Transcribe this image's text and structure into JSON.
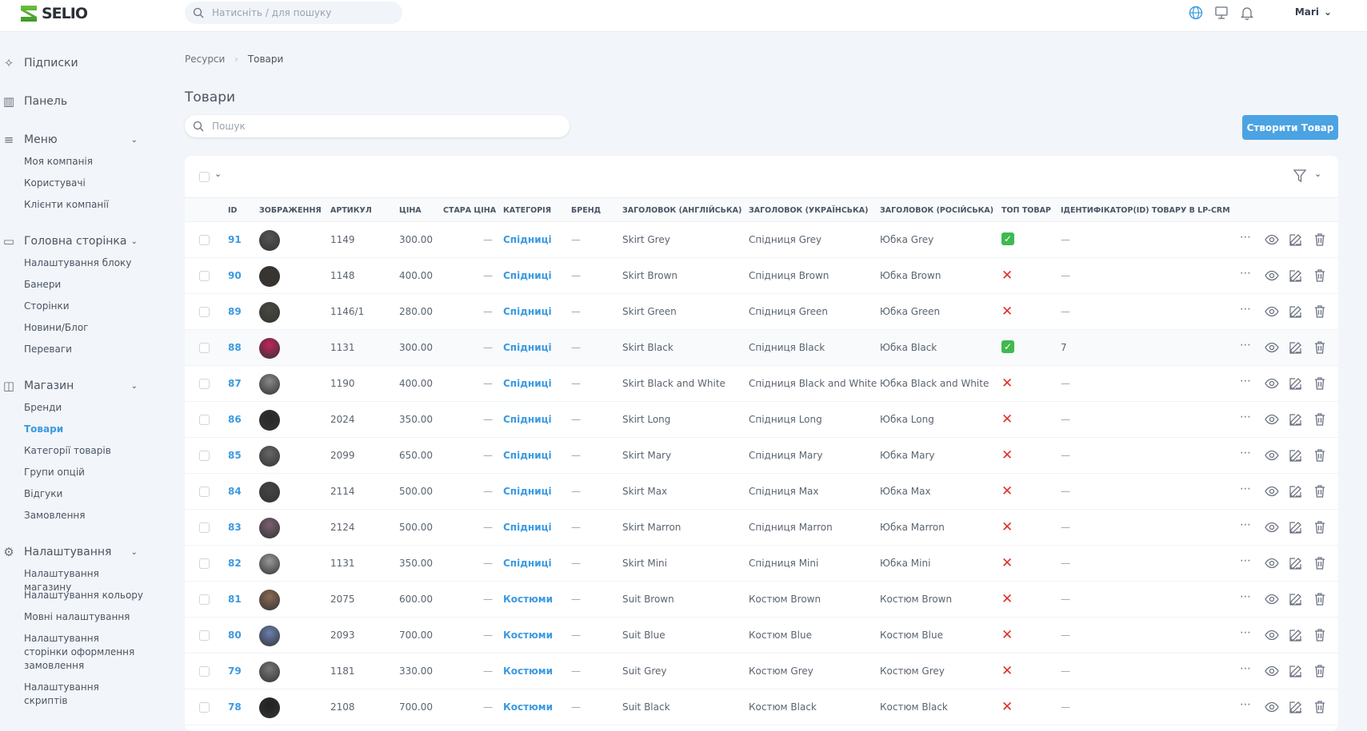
{
  "app": {
    "logo": "SELIO",
    "search_placeholder": "Натисніть / для пошуку",
    "user": "Mari",
    "icons": [
      "globe-icon",
      "monitor-icon",
      "bell-icon"
    ],
    "accent": "#4ba3e3"
  },
  "sidebar": {
    "sections": [
      {
        "label": "Підписки",
        "icon": "sparkles-icon",
        "items": []
      },
      {
        "label": "Панель",
        "icon": "bar-chart-icon",
        "items": []
      },
      {
        "label": "Меню",
        "icon": "menu-icon",
        "items": [
          "Моя компанія",
          "Користувачі",
          "Клієнти компанії"
        ]
      },
      {
        "label": "Головна сторінка",
        "icon": "layers-icon",
        "items": [
          "Налаштування блоку",
          "Банери",
          "Сторінки",
          "Новини/Блог",
          "Переваги"
        ]
      },
      {
        "label": "Магазин",
        "icon": "shopping-bag-icon",
        "items": [
          "Бренди",
          "Товари",
          "Категорії товарів",
          "Групи опцій",
          "Відгуки",
          "Замовлення"
        ]
      },
      {
        "label": "Налаштування",
        "icon": "gear-icon",
        "items": [
          "Налаштування магазину",
          "Налаштування кольору",
          "Мовні налаштування",
          "Налаштування сторінки оформлення замовлення",
          "Налаштування скриптів"
        ]
      }
    ],
    "active": "Товари"
  },
  "breadcrumb": [
    "Ресурси",
    "Товари"
  ],
  "page": {
    "title": "Товари",
    "search_placeholder": "Пошук",
    "create_label": "Створити Товар"
  },
  "table": {
    "columns": [
      "ID",
      "ЗОБРАЖЕННЯ",
      "АРТИКУЛ",
      "ЦІНА",
      "СТАРА ЦІНА",
      "КАТЕГОРІЯ",
      "БРЕНД",
      "ЗАГОЛОВОК (АНГЛІЙСЬКА)",
      "ЗАГОЛОВОК (УКРАЇНСЬКА)",
      "ЗАГОЛОВОК (РОСІЙСЬКА)",
      "ТОП ТОВАР",
      "ІДЕНТИФІКАТОР(ID) ТОВАРУ В LP-CRM"
    ],
    "rows": [
      {
        "id": "91",
        "sku": "1149",
        "price": "300.00",
        "old": "—",
        "cat": "Спідниці",
        "brand": "—",
        "en": "Skirt Grey",
        "uk": "Спідниця Grey",
        "ru": "Юбка Grey",
        "top": true,
        "lp": "—"
      },
      {
        "id": "90",
        "sku": "1148",
        "price": "400.00",
        "old": "—",
        "cat": "Спідниці",
        "brand": "—",
        "en": "Skirt Brown",
        "uk": "Спідниця Brown",
        "ru": "Юбка Brown",
        "top": false,
        "lp": "—"
      },
      {
        "id": "89",
        "sku": "1146/1",
        "price": "280.00",
        "old": "—",
        "cat": "Спідниці",
        "brand": "—",
        "en": "Skirt Green",
        "uk": "Спідниця Green",
        "ru": "Юбка Green",
        "top": false,
        "lp": "—"
      },
      {
        "id": "88",
        "sku": "1131",
        "price": "300.00",
        "old": "—",
        "cat": "Спідниці",
        "brand": "—",
        "en": "Skirt Black",
        "uk": "Спідниця Black",
        "ru": "Юбка Black",
        "top": true,
        "lp": "7"
      },
      {
        "id": "87",
        "sku": "1190",
        "price": "400.00",
        "old": "—",
        "cat": "Спідниці",
        "brand": "—",
        "en": "Skirt Black and White",
        "uk": "Спідниця Black and White",
        "ru": "Юбка Black and White",
        "top": false,
        "lp": "—"
      },
      {
        "id": "86",
        "sku": "2024",
        "price": "350.00",
        "old": "—",
        "cat": "Спідниці",
        "brand": "—",
        "en": "Skirt Long",
        "uk": "Спідниця Long",
        "ru": "Юбка Long",
        "top": false,
        "lp": "—"
      },
      {
        "id": "85",
        "sku": "2099",
        "price": "650.00",
        "old": "—",
        "cat": "Спідниці",
        "brand": "—",
        "en": "Skirt Mary",
        "uk": "Спідниця Mary",
        "ru": "Юбка Mary",
        "top": false,
        "lp": "—"
      },
      {
        "id": "84",
        "sku": "2114",
        "price": "500.00",
        "old": "—",
        "cat": "Спідниці",
        "brand": "—",
        "en": "Skirt Max",
        "uk": "Спідниця Max",
        "ru": "Юбка Max",
        "top": false,
        "lp": "—"
      },
      {
        "id": "83",
        "sku": "2124",
        "price": "500.00",
        "old": "—",
        "cat": "Спідниці",
        "brand": "—",
        "en": "Skirt Marron",
        "uk": "Спідниця Marron",
        "ru": "Юбка Marron",
        "top": false,
        "lp": "—"
      },
      {
        "id": "82",
        "sku": "1131",
        "price": "350.00",
        "old": "—",
        "cat": "Спідниці",
        "brand": "—",
        "en": "Skirt Mini",
        "uk": "Спідниця Mini",
        "ru": "Юбка Mini",
        "top": false,
        "lp": "—"
      },
      {
        "id": "81",
        "sku": "2075",
        "price": "600.00",
        "old": "—",
        "cat": "Костюми",
        "brand": "—",
        "en": "Suit Brown",
        "uk": "Костюм Brown",
        "ru": "Костюм Brown",
        "top": false,
        "lp": "—"
      },
      {
        "id": "80",
        "sku": "2093",
        "price": "700.00",
        "old": "—",
        "cat": "Костюми",
        "brand": "—",
        "en": "Suit Blue",
        "uk": "Костюм Blue",
        "ru": "Костюм Blue",
        "top": false,
        "lp": "—"
      },
      {
        "id": "79",
        "sku": "1181",
        "price": "330.00",
        "old": "—",
        "cat": "Костюми",
        "brand": "—",
        "en": "Suit Grey",
        "uk": "Костюм Grey",
        "ru": "Костюм Grey",
        "top": false,
        "lp": "—"
      },
      {
        "id": "78",
        "sku": "2108",
        "price": "700.00",
        "old": "—",
        "cat": "Костюми",
        "brand": "—",
        "en": "Suit Black",
        "uk": "Костюм Black",
        "ru": "Костюм Black",
        "top": false,
        "lp": "—"
      }
    ]
  }
}
